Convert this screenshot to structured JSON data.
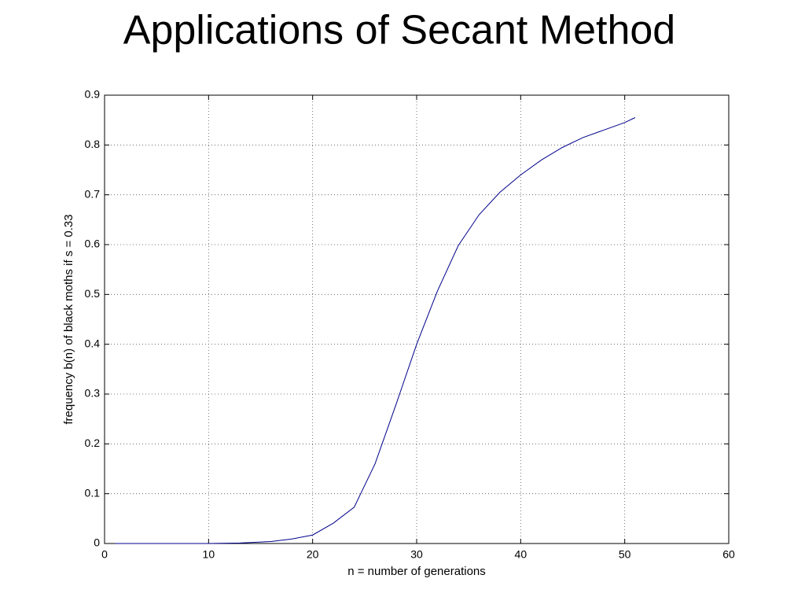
{
  "chart_data": {
    "type": "line",
    "title": "Applications of Secant Method",
    "x_label": "n = number of generations",
    "y_label": "frequency b(n) of black moths if s = 0.33",
    "series": [
      {
        "color": "#00008b",
        "x": [
          1,
          4,
          7,
          10,
          13,
          14,
          16,
          18,
          20,
          22,
          24,
          26,
          28,
          30,
          32,
          34,
          36,
          38,
          40,
          42,
          44,
          46,
          48,
          50,
          51
        ],
        "values": [
          0,
          0,
          0,
          0,
          0.001,
          0.002,
          0.004,
          0.009,
          0.017,
          0.041,
          0.073,
          0.16,
          0.278,
          0.4,
          0.507,
          0.598,
          0.66,
          0.705,
          0.74,
          0.77,
          0.795,
          0.815,
          0.83,
          0.845,
          0.855
        ]
      }
    ],
    "xlim": [
      0,
      60
    ],
    "xticks": [
      0,
      10,
      20,
      30,
      40,
      50,
      60
    ],
    "ylim": [
      0,
      0.9
    ],
    "yticks": [
      0,
      0.1,
      0.2,
      0.3,
      0.4,
      0.5,
      0.6,
      0.7,
      0.8,
      0.9
    ],
    "grid": true
  }
}
